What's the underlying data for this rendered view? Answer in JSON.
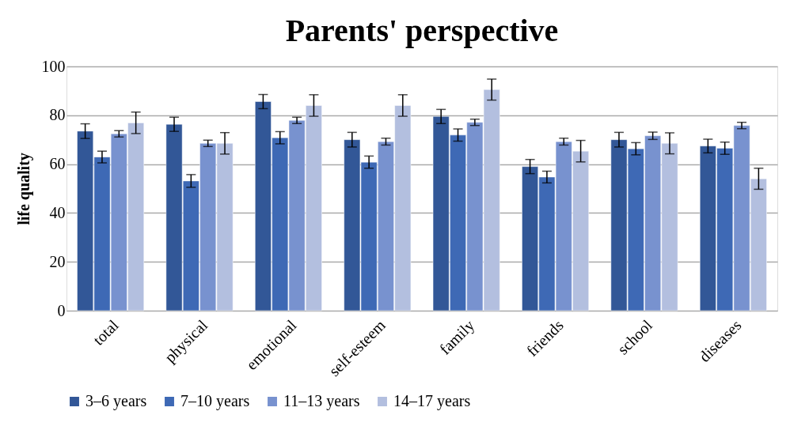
{
  "chart_data": {
    "type": "bar",
    "title": "Parents' perspective",
    "ylabel": "life quality",
    "categories": [
      "total",
      "physical",
      "emotional",
      "self-esteem",
      "family",
      "friends",
      "school",
      "diseases"
    ],
    "series": [
      {
        "name": "3–6 years",
        "color": "#325797",
        "values": [
          73.5,
          76.3,
          85.6,
          70.0,
          79.5,
          59.0,
          70.0,
          67.4
        ],
        "errors": [
          3.0,
          2.9,
          2.9,
          3.0,
          2.9,
          2.9,
          3.0,
          2.8
        ]
      },
      {
        "name": "7–10 years",
        "color": "#3e69b5",
        "values": [
          62.9,
          53.1,
          70.8,
          60.8,
          71.9,
          54.7,
          66.3,
          66.5
        ],
        "errors": [
          2.4,
          2.6,
          2.5,
          2.5,
          2.5,
          2.4,
          2.5,
          2.5
        ]
      },
      {
        "name": "11–13 years",
        "color": "#7892cf",
        "values": [
          72.4,
          68.5,
          77.9,
          69.2,
          77.1,
          69.2,
          71.6,
          75.8
        ],
        "errors": [
          1.3,
          1.3,
          1.3,
          1.4,
          1.3,
          1.4,
          1.5,
          1.3
        ]
      },
      {
        "name": "14–17 years",
        "color": "#b3bfdf",
        "values": [
          76.9,
          68.5,
          84.0,
          84.0,
          90.5,
          65.3,
          68.5,
          54.0
        ],
        "errors": [
          4.4,
          4.4,
          4.4,
          4.4,
          4.3,
          4.4,
          4.3,
          4.3
        ]
      }
    ],
    "ylim": [
      0,
      100
    ],
    "yticks": [
      0,
      20,
      40,
      60,
      80,
      100
    ],
    "grid": "y",
    "legend": "bottom"
  }
}
